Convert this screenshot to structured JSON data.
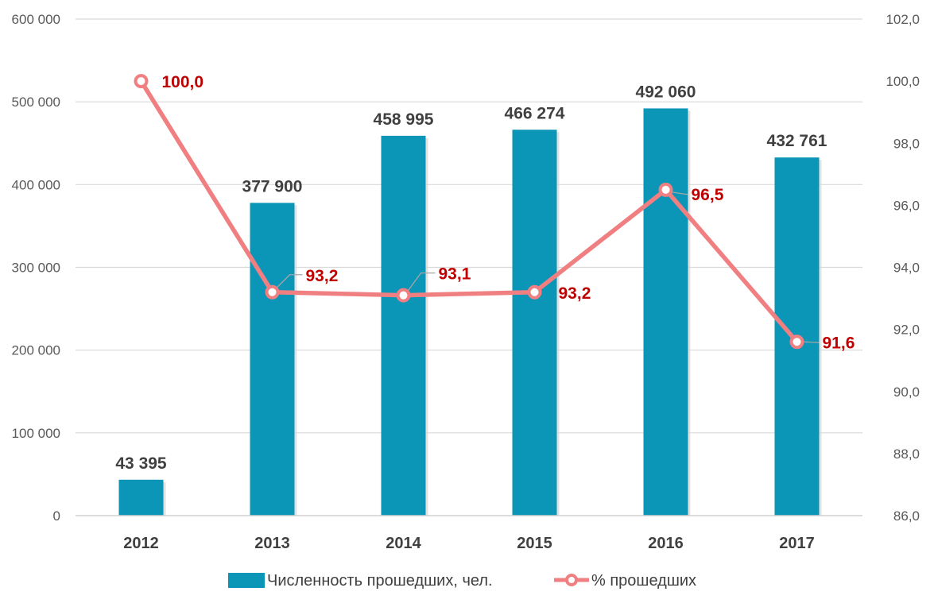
{
  "chart_data": {
    "type": "bar",
    "categories": [
      "2012",
      "2013",
      "2014",
      "2015",
      "2016",
      "2017"
    ],
    "series": [
      {
        "name": "Численность прошедших, чел.",
        "type": "bar",
        "axis": "left",
        "values": [
          43395,
          377900,
          458995,
          466274,
          492060,
          432761
        ],
        "labels": [
          "43 395",
          "377 900",
          "458 995",
          "466 274",
          "492 060",
          "432 761"
        ],
        "color": "#0b95b7"
      },
      {
        "name": "% прошедших",
        "type": "line",
        "axis": "right",
        "values": [
          100.0,
          93.2,
          93.1,
          93.2,
          96.5,
          91.6
        ],
        "labels": [
          "100,0",
          "93,2",
          "93,1",
          "93,2",
          "96,5",
          "91,6"
        ],
        "color": "#f07f82"
      }
    ],
    "ylim_left": [
      0,
      600000
    ],
    "yticks_left": [
      "0",
      "100 000",
      "200 000",
      "300 000",
      "400 000",
      "500 000",
      "600 000"
    ],
    "ylim_right": [
      86,
      102
    ],
    "yticks_right": [
      "86,0",
      "88,0",
      "90,0",
      "92,0",
      "94,0",
      "96,0",
      "98,0",
      "100,0",
      "102,0"
    ],
    "grid": true,
    "legend_position": "bottom",
    "label_color": "#c00000"
  }
}
